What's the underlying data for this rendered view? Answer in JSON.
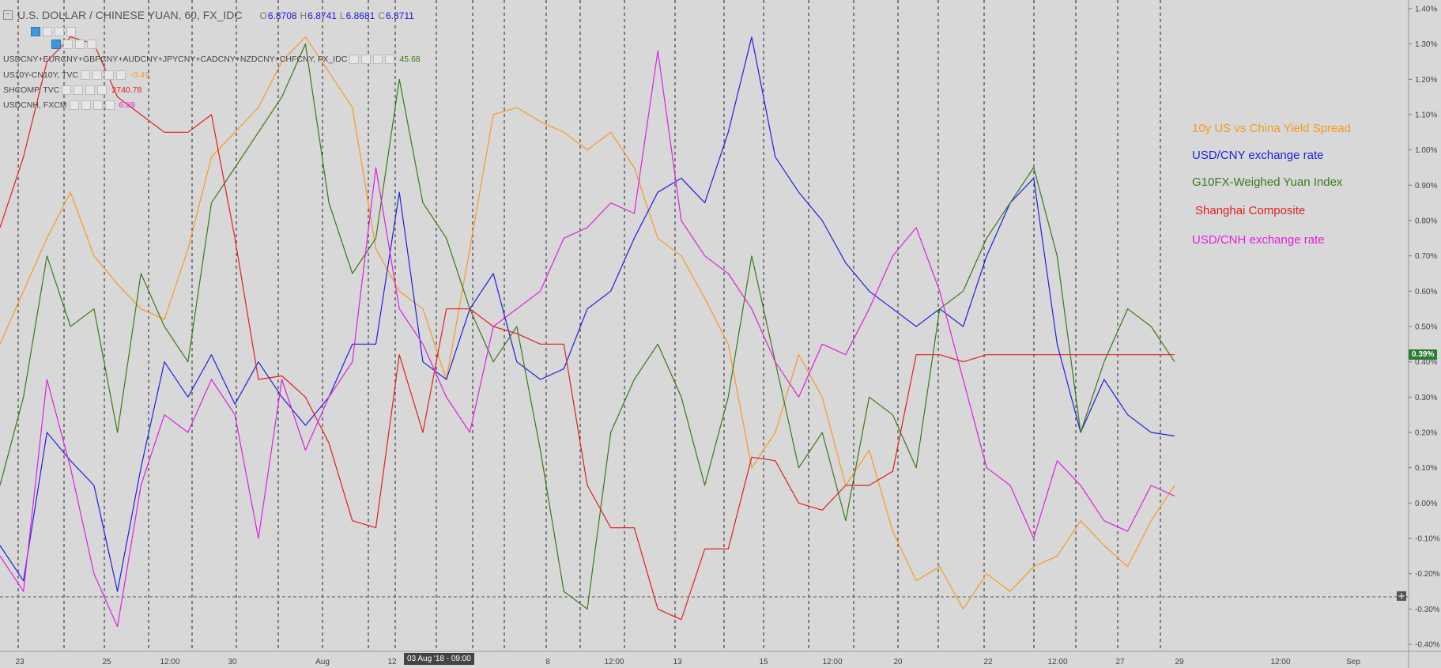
{
  "header": {
    "symbol_title": "U.S. DOLLAR / CHINESE YUAN, 60, FX_IDC",
    "ohlc": [
      {
        "label": "O",
        "value": "6.8708"
      },
      {
        "label": "H",
        "value": "6.8741"
      },
      {
        "label": "L",
        "value": "6.8681"
      },
      {
        "label": "C",
        "value": "6.8711"
      }
    ],
    "ohlc_color": "#1a1ad6"
  },
  "indicators": [
    {
      "label": "USDCNY+EURCNY+GBPCNY+AUDCNY+JPYCNY+CADCNY+NZDCNY+CHFCNY, FX_IDC",
      "value": "45.68",
      "color": "#3a7a1a"
    },
    {
      "label": "US10Y-CN10Y, TVC",
      "value": "-0.49",
      "color": "#f59a23"
    },
    {
      "label": "SHCOMP, TVC",
      "value": "2740.78",
      "color": "#e02020"
    },
    {
      "label": "USDCNH, FXCM",
      "value": "6.89",
      "color": "#e020e0"
    }
  ],
  "legend": [
    {
      "label": "10y US vs China Yield Spread",
      "color": "#f59a23"
    },
    {
      "label": "USD/CNY exchange rate",
      "color": "#2020e0"
    },
    {
      "label": "G10FX-Weighed Yuan Index",
      "color": "#3a7a1a"
    },
    {
      "label": "Shanghai Composite",
      "color": "#e02020"
    },
    {
      "label": "USD/CNH exchange rate",
      "color": "#e020e0"
    }
  ],
  "last_value_badge": "0.39%",
  "crosshair_time": "03 Aug '18 - 09:00",
  "chart_data": {
    "type": "line",
    "y_unit": "%",
    "ylim": [
      -0.42,
      1.42
    ],
    "y_ticks": [
      "1.40%",
      "1.30%",
      "1.20%",
      "1.10%",
      "1.00%",
      "0.90%",
      "0.80%",
      "0.70%",
      "0.60%",
      "0.50%",
      "0.40%",
      "0.30%",
      "0.20%",
      "0.10%",
      "0.00%",
      "-0.10%",
      "-0.20%",
      "-0.30%",
      "-0.40%"
    ],
    "x_ticks": [
      "23",
      "25",
      "12:00",
      "30",
      "Aug",
      "12",
      "8",
      "12:00",
      "13",
      "15",
      "12:00",
      "20",
      "22",
      "12:00",
      "27",
      "29",
      "12:00",
      "Sep"
    ],
    "grid": "dashed vertical session separators",
    "series": [
      {
        "name": "10y US vs China Yield Spread",
        "color": "#f59a23",
        "x": [
          0,
          2,
          4,
          6,
          8,
          10,
          12,
          14,
          16,
          18,
          20,
          22,
          24,
          26,
          28,
          30,
          32,
          34,
          36,
          38,
          40,
          42,
          44,
          46,
          48,
          50,
          52,
          54,
          56,
          58,
          60,
          62,
          64,
          66,
          68,
          70,
          72,
          74,
          76,
          78,
          80,
          82,
          84,
          86,
          88,
          90,
          92,
          94,
          96,
          98,
          100
        ],
        "values": [
          0.45,
          0.6,
          0.75,
          0.88,
          0.7,
          0.62,
          0.55,
          0.52,
          0.72,
          0.98,
          1.05,
          1.12,
          1.25,
          1.32,
          1.22,
          1.12,
          0.72,
          0.6,
          0.55,
          0.35,
          0.72,
          1.1,
          1.12,
          1.08,
          1.05,
          1.0,
          1.05,
          0.95,
          0.75,
          0.7,
          0.58,
          0.45,
          0.1,
          0.2,
          0.42,
          0.3,
          0.05,
          0.15,
          -0.08,
          -0.22,
          -0.18,
          -0.3,
          -0.2,
          -0.25,
          -0.18,
          -0.15,
          -0.05,
          -0.12,
          -0.18,
          -0.05,
          0.05
        ]
      },
      {
        "name": "USD/CNY exchange rate",
        "color": "#2020e0",
        "x": [
          0,
          2,
          4,
          6,
          8,
          10,
          12,
          14,
          16,
          18,
          20,
          22,
          24,
          26,
          28,
          30,
          32,
          34,
          36,
          38,
          40,
          42,
          44,
          46,
          48,
          50,
          52,
          54,
          56,
          58,
          60,
          62,
          64,
          66,
          68,
          70,
          72,
          74,
          76,
          78,
          80,
          82,
          84,
          86,
          88,
          90,
          92,
          94,
          96,
          98,
          100
        ],
        "values": [
          -0.12,
          -0.22,
          0.2,
          0.12,
          0.05,
          -0.25,
          0.1,
          0.4,
          0.3,
          0.42,
          0.28,
          0.4,
          0.3,
          0.22,
          0.3,
          0.45,
          0.45,
          0.88,
          0.4,
          0.35,
          0.55,
          0.65,
          0.4,
          0.35,
          0.38,
          0.55,
          0.6,
          0.75,
          0.88,
          0.92,
          0.85,
          1.05,
          1.32,
          0.98,
          0.88,
          0.8,
          0.68,
          0.6,
          0.55,
          0.5,
          0.55,
          0.5,
          0.7,
          0.85,
          0.92,
          0.45,
          0.2,
          0.35,
          0.25,
          0.2,
          0.19
        ]
      },
      {
        "name": "G10FX-Weighed Yuan Index",
        "color": "#3a7a1a",
        "x": [
          0,
          2,
          4,
          6,
          8,
          10,
          12,
          14,
          16,
          18,
          20,
          22,
          24,
          26,
          28,
          30,
          32,
          34,
          36,
          38,
          40,
          42,
          44,
          46,
          48,
          50,
          52,
          54,
          56,
          58,
          60,
          62,
          64,
          66,
          68,
          70,
          72,
          74,
          76,
          78,
          80,
          82,
          84,
          86,
          88,
          90,
          92,
          94,
          96,
          98,
          100
        ],
        "values": [
          0.05,
          0.3,
          0.7,
          0.5,
          0.55,
          0.2,
          0.65,
          0.5,
          0.4,
          0.85,
          0.95,
          1.05,
          1.15,
          1.3,
          0.85,
          0.65,
          0.75,
          1.2,
          0.85,
          0.75,
          0.55,
          0.4,
          0.5,
          0.15,
          -0.25,
          -0.3,
          0.2,
          0.35,
          0.45,
          0.3,
          0.05,
          0.3,
          0.7,
          0.4,
          0.1,
          0.2,
          -0.05,
          0.3,
          0.25,
          0.1,
          0.55,
          0.6,
          0.75,
          0.85,
          0.95,
          0.7,
          0.2,
          0.4,
          0.55,
          0.5,
          0.4
        ]
      },
      {
        "name": "Shanghai Composite",
        "color": "#e02020",
        "x": [
          0,
          2,
          4,
          6,
          8,
          10,
          12,
          14,
          16,
          18,
          20,
          22,
          24,
          26,
          28,
          30,
          32,
          34,
          36,
          38,
          40,
          42,
          44,
          46,
          48,
          50,
          52,
          54,
          56,
          58,
          60,
          62,
          64,
          66,
          68,
          70,
          72,
          74,
          76,
          78,
          80,
          82,
          84,
          86,
          88,
          90,
          92,
          94,
          96,
          98,
          100
        ],
        "values": [
          0.78,
          0.98,
          1.25,
          1.32,
          1.3,
          1.15,
          1.1,
          1.05,
          1.05,
          1.1,
          0.75,
          0.35,
          0.36,
          0.3,
          0.17,
          -0.05,
          -0.07,
          0.42,
          0.2,
          0.55,
          0.55,
          0.5,
          0.48,
          0.45,
          0.45,
          0.05,
          -0.07,
          -0.07,
          -0.3,
          -0.33,
          -0.13,
          -0.13,
          0.13,
          0.12,
          0.0,
          -0.02,
          0.05,
          0.05,
          0.09,
          0.42,
          0.42,
          0.4,
          0.42,
          0.42,
          0.42,
          0.42,
          0.42,
          0.42,
          0.42,
          0.42,
          0.42
        ]
      },
      {
        "name": "USD/CNH exchange rate",
        "color": "#e020e0",
        "x": [
          0,
          2,
          4,
          6,
          8,
          10,
          12,
          14,
          16,
          18,
          20,
          22,
          24,
          26,
          28,
          30,
          32,
          34,
          36,
          38,
          40,
          42,
          44,
          46,
          48,
          50,
          52,
          54,
          56,
          58,
          60,
          62,
          64,
          66,
          68,
          70,
          72,
          74,
          76,
          78,
          80,
          82,
          84,
          86,
          88,
          90,
          92,
          94,
          96,
          98,
          100
        ],
        "values": [
          -0.15,
          -0.25,
          0.35,
          0.1,
          -0.2,
          -0.35,
          0.05,
          0.25,
          0.2,
          0.35,
          0.25,
          -0.1,
          0.35,
          0.15,
          0.3,
          0.4,
          0.95,
          0.55,
          0.45,
          0.3,
          0.2,
          0.5,
          0.55,
          0.6,
          0.75,
          0.78,
          0.85,
          0.82,
          1.28,
          0.8,
          0.7,
          0.65,
          0.55,
          0.4,
          0.3,
          0.45,
          0.42,
          0.55,
          0.7,
          0.78,
          0.6,
          0.35,
          0.1,
          0.05,
          -0.1,
          0.12,
          0.05,
          -0.05,
          -0.08,
          0.05,
          0.02
        ]
      }
    ]
  }
}
